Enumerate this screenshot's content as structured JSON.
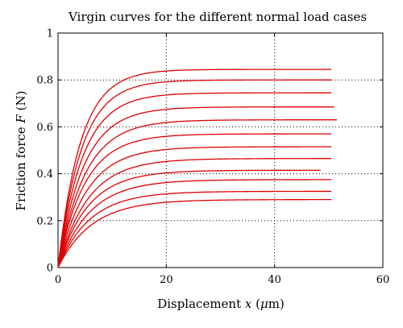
{
  "chart_data": {
    "type": "line",
    "title": "Virgin curves for the different normal load cases",
    "xlabel_parts": [
      "Displacement ",
      "x",
      " (",
      "μ",
      "m)"
    ],
    "ylabel_parts": [
      "Friction force ",
      "F",
      " (N)"
    ],
    "xlim": [
      0,
      60
    ],
    "ylim": [
      0,
      1
    ],
    "xticks": [
      0,
      20,
      40,
      60
    ],
    "xtick_labels": [
      "0",
      "20",
      "40",
      "60"
    ],
    "yticks": [
      0,
      0.2,
      0.4,
      0.6,
      0.8,
      1
    ],
    "ytick_labels": [
      "0",
      "0.2",
      "0.4",
      "0.6",
      "0.8",
      "1"
    ],
    "grid": true,
    "grid_style": "dotted",
    "line_color": "#dd0000",
    "series": [
      {
        "plateau": 0.845,
        "rate": 0.24,
        "x_end": 50.5
      },
      {
        "plateau": 0.8,
        "rate": 0.23,
        "x_end": 50.5
      },
      {
        "plateau": 0.745,
        "rate": 0.22,
        "x_end": 50.5
      },
      {
        "plateau": 0.685,
        "rate": 0.21,
        "x_end": 51.0
      },
      {
        "plateau": 0.63,
        "rate": 0.2,
        "x_end": 51.5
      },
      {
        "plateau": 0.57,
        "rate": 0.2,
        "x_end": 50.5
      },
      {
        "plateau": 0.515,
        "rate": 0.19,
        "x_end": 50.5
      },
      {
        "plateau": 0.465,
        "rate": 0.18,
        "x_end": 50.5
      },
      {
        "plateau": 0.415,
        "rate": 0.18,
        "x_end": 48.5
      },
      {
        "plateau": 0.375,
        "rate": 0.17,
        "x_end": 50.5
      },
      {
        "plateau": 0.325,
        "rate": 0.17,
        "x_end": 50.5
      },
      {
        "plateau": 0.29,
        "rate": 0.16,
        "x_end": 50.5
      }
    ]
  }
}
